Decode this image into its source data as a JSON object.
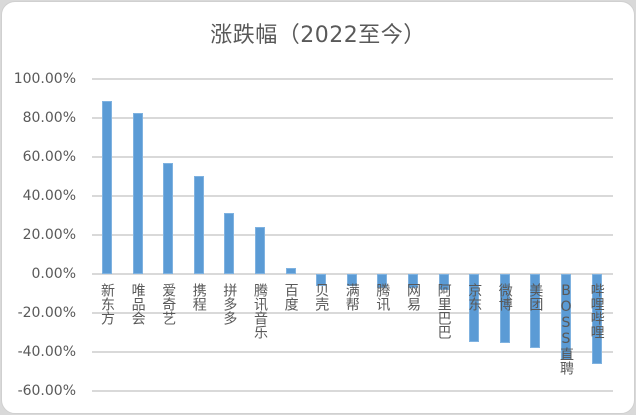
{
  "chart_data": {
    "type": "bar",
    "title": "涨跌幅（2022至今）",
    "xlabel": "",
    "ylabel": "",
    "ylim": [
      -0.6,
      1.0
    ],
    "grid": true,
    "legend": null,
    "y_ticks": [
      "100.00%",
      "80.00%",
      "60.00%",
      "40.00%",
      "20.00%",
      "0.00%",
      "-20.00%",
      "-40.00%",
      "-60.00%"
    ],
    "categories": [
      "新东方",
      "唯品会",
      "爱奇艺",
      "携程",
      "拼多多",
      "腾讯音乐",
      "百度",
      "贝壳",
      "满帮",
      "腾讯",
      "网易",
      "阿里巴巴",
      "京东",
      "微博",
      "美团",
      "BOSS直聘",
      "哔哩哔哩"
    ],
    "values": [
      0.887,
      0.826,
      0.569,
      0.503,
      0.313,
      0.241,
      0.03,
      -0.06,
      -0.06,
      -0.07,
      -0.07,
      -0.08,
      -0.349,
      -0.354,
      -0.379,
      -0.44,
      -0.46
    ],
    "bar_color": "#5b9bd5"
  }
}
